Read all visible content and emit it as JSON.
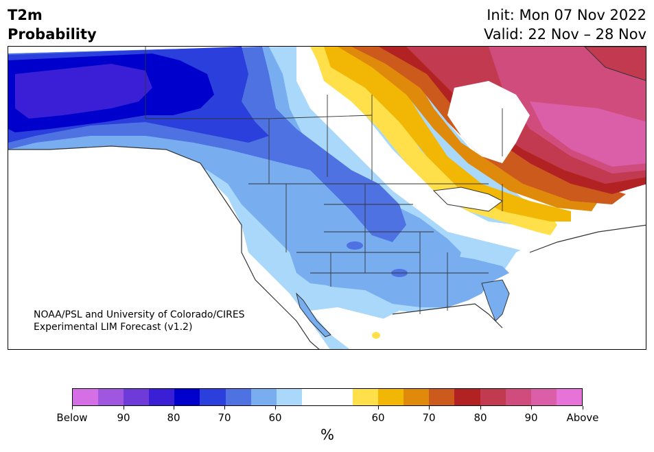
{
  "title": {
    "left_line1": "T2m",
    "left_line2": "Probability",
    "right_line1": "Init: Mon 07 Nov 2022",
    "right_line2": "Valid: 22 Nov – 28 Nov"
  },
  "credit": {
    "line1": "NOAA/PSL and University of Colorado/CIRES",
    "line2": "Experimental LIM Forecast (v1.2)"
  },
  "colorbar": {
    "segments": [
      "#d46fe6",
      "#9f57e0",
      "#6f3bd8",
      "#3a1fd6",
      "#0000cc",
      "#2a3fdb",
      "#4f72e3",
      "#78aef0",
      "#aad8fa",
      "#ffffff",
      "#ffffff",
      "#ffe04a",
      "#f2b705",
      "#e08a0c",
      "#cc5a1c",
      "#b22222",
      "#c23a50",
      "#cf4c7d",
      "#db5ea8",
      "#e873d8"
    ],
    "tick_labels": [
      "Below",
      "90",
      "80",
      "70",
      "60",
      "60",
      "70",
      "80",
      "90",
      "Above"
    ],
    "units": "%"
  },
  "legend_colors": {
    "below_strong": "#3a1fd6",
    "below_moderate": "#4f72e3",
    "below_weak": "#aad8fa",
    "neutral": "#ffffff",
    "above_weak": "#ffe04a",
    "above_moderate": "#cc5a1c",
    "above_strong": "#c23a50"
  }
}
